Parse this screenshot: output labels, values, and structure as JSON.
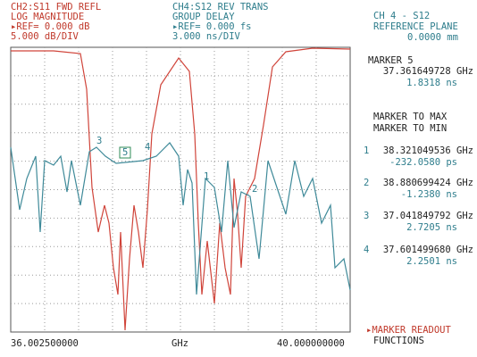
{
  "left_header": {
    "lines": [
      "CH2:S11 FWD REFL",
      "LOG MAGNITUDE",
      "▸REF= 0.000 dB",
      "5.000 dB/DIV"
    ]
  },
  "mid_header": {
    "lines": [
      "CH4:S12 REV TRANS",
      "GROUP DELAY",
      "▸REF= 0.000 fs",
      "3.000 ns/DIV"
    ]
  },
  "right_header": {
    "lines": [
      "CH 4 - S12",
      "REFERENCE PLANE",
      "0.0000 mm"
    ]
  },
  "active_marker": {
    "title": "MARKER 5",
    "freq": "37.361649728 GHz",
    "value": "1.8318 ns"
  },
  "functions": [
    "MARKER TO MAX",
    "MARKER TO MIN"
  ],
  "markers": [
    {
      "number": "1",
      "freq": "38.321049536 GHz",
      "value": "-232.0580 ps"
    },
    {
      "number": "2",
      "freq": "38.880699424 GHz",
      "value": "-1.2380 ns"
    },
    {
      "number": "3",
      "freq": "37.041849792 GHz",
      "value": "2.7205 ns"
    },
    {
      "number": "4",
      "freq": "37.601499680 GHz",
      "value": "2.2501 ns"
    }
  ],
  "x_axis": {
    "start": "36.002500000",
    "unit": "GHz",
    "stop": "40.000000000"
  },
  "softkey": {
    "lines": [
      "▸MARKER READOUT",
      "FUNCTIONS"
    ]
  },
  "plot_markers": [
    "3",
    "5",
    "4",
    "1",
    "2"
  ]
}
